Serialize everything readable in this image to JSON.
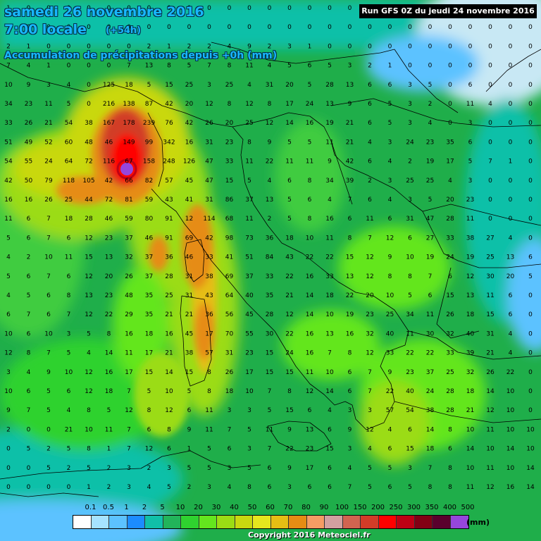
{
  "header": {
    "date": "samedi 26 novembre 2016",
    "time": "7:00 locale",
    "offset": "(+54h)",
    "subtitle": "Accumulation de précipitations depuis +0h (mm)"
  },
  "run_info": "Run GFS 0Z du jeudi 24 novembre 2016",
  "legend": {
    "unit": "(mm)",
    "labels": [
      "0.1",
      "0.5",
      "1",
      "2",
      "5",
      "10",
      "20",
      "30",
      "40",
      "50",
      "60",
      "70",
      "80",
      "90",
      "100",
      "150",
      "200",
      "250",
      "300",
      "350",
      "400",
      "500"
    ],
    "colors": [
      "#ffffff",
      "#a6e3ff",
      "#5cc2ff",
      "#1c8cff",
      "#10c0a8",
      "#22b45a",
      "#2fd22f",
      "#64e61e",
      "#9bdc14",
      "#c9d810",
      "#e6e61e",
      "#e6be14",
      "#e68c14",
      "#f59c64",
      "#d2a0a0",
      "#d26450",
      "#d23c28",
      "#ff0000",
      "#be0014",
      "#820014",
      "#5a002d",
      "#9646dc"
    ]
  },
  "copyright": "Copyright 2016 Meteociel.fr",
  "grid_values": [
    "1 0 0 0 0 0 0 0 0 0 0 0 0 0 0 0 0 0 0 0 0 0 0 0 0 0 0",
    "1 0 0 0 0 0 0 0 0 0 0 0 0 0 0 0 0 0 0 0 0 0 0 0 0 0 0",
    "2 1 0 0 0 0 0 2 1 2 2 4 9 2 3 1 0 0 0 0 0 0 0 0 0 0 0",
    "7 4 1 0 0 0 7 13 8 5 7 8 11 4 5 6 5 3 2 1 0 0 0 0 0 0 0",
    "10 9 3 4 0 125 18 5 15 25 3 25 4 31 20 5 28 13 6 6 3 5 0 6 0 0 0",
    "34 23 11 5 0 216 138 87 42 20 12 8 12 8 17 24 13 9 6 5 3 2 0 11 4 0 0",
    "33 26 21 54 38 167 178 239 76 42 26 20 25 12 14 16 19 21 6 5 3 4 0 3 0 0 0",
    "51 49 52 60 48 46 149 99 342 16 31 23 8 9 5 5 11 21 4 3 24 23 35 6 0 0 0",
    "54 55 24 64 72 116 67 158 248 126 47 33 11 22 11 11 9 42 6 4 2 19 17 5 7 1 0",
    "42 50 79 118 105 42 66 82 57 45 47 15 5 4 6 8 34 39 2 3 25 25 4 3 0 0 0",
    "16 16 26 25 44 72 81 59 43 41 31 86 37 13 5 6 4 7 6 4 3 5 20 23 0 0 0",
    "11 6 7 18 28 46 59 80 91 12 114 68 11 2 5 8 16 6 11 6 31 47 28 11 0 0 0",
    "5 6 7 6 12 23 37 46 91 69 42 98 73 36 18 10 11 8 7 12 6 27 33 38 27 4 0",
    "4 2 10 11 15 13 32 37 36 46 33 41 51 84 43 22 22 15 12 9 10 19 24 19 25 13 6",
    "5 6 7 6 12 20 26 37 28 31 38 69 37 33 22 16 33 13 12 8 8 7 6 12 30 20 5",
    "4 5 6 8 13 23 48 35 25 31 43 64 40 35 21 14 18 22 20 10 5 6 15 13 11 6 0",
    "6 7 6 7 12 22 29 35 21 21 36 56 45 28 12 14 10 19 23 25 34 11 26 18 15 6 0",
    "10 6 10 3 5 8 16 18 16 45 17 70 55 30 22 16 13 16 32 40 11 30 32 40 31 4 0",
    "12 8 7 5 4 14 11 17 21 38 57 31 23 15 24 16 7 8 12 33 22 22 33 39 21 4 0",
    "3 4 9 10 12 16 17 15 14 15 8 26 17 15 15 11 10 6 7 9 23 37 25 32 26 22 0",
    "10 6 5 6 12 18 7 5 10 5 8 18 10 7 8 12 14 6 7 22 40 24 28 18 14 10 0",
    "9 7 5 4 8 5 12 8 12 6 11 3 3 5 15 6 4 3 3 57 54 38 28 21 12 10 0",
    "2 0 0 21 10 11 7 6 8 9 11 7 5 11 9 13 6 9 12 4 6 14 8 10 11 10 10",
    "0 5 2 5 8 1 7 12 6 1 5 6 3 7 22 23 15 3 4 6 15 18 6 14 10 14 10",
    "0 0 5 2 5 2 3 2 3 5 5 3 5 6 9 17 6 4 5 5 3 7 8 10 11 10 14",
    "0 0 0 0 1 2 3 4 5 2 3 4 8 6 3 6 6 7 5 6 5 8 8 11 12 16 14"
  ]
}
